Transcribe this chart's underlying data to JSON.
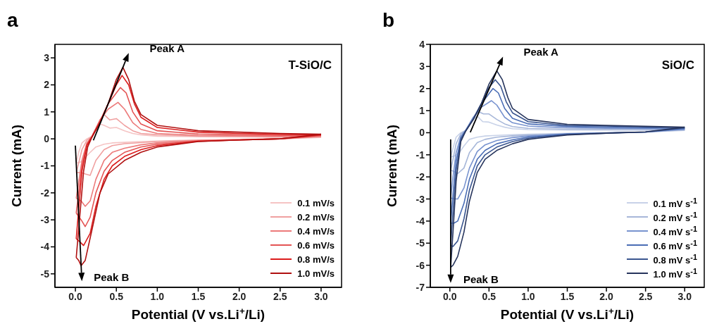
{
  "chart_data": [
    {
      "type": "line",
      "title": "T-SiO/C",
      "xlabel": "Potential (V vs.Li$^{+}$/Li)",
      "ylabel": "Current (mA)",
      "xlim": [
        -0.25,
        3.25
      ],
      "ylim": [
        -5.5,
        3.5
      ],
      "xticks": [
        {
          "value": 0,
          "label": "0.0"
        },
        0.5,
        {
          "value": 1,
          "label": "1.0"
        },
        1.5,
        {
          "value": 2,
          "label": "2.0"
        },
        2.5,
        {
          "value": 3,
          "label": "3.0"
        }
      ],
      "yticks": [
        -5,
        -4,
        -3,
        -2,
        -1,
        0,
        1,
        2,
        3
      ],
      "legend": "bottom right",
      "annotations": [
        "a",
        {
          "text": "Peak A",
          "x": 0.58,
          "y": 2.65
        },
        {
          "text": "Peak B",
          "x": 0.07,
          "y": -4.7
        }
      ],
      "series": [
        {
          "name": "0.1 mV/s",
          "color": "#f5c4c4",
          "x": [
            0.01,
            0.04,
            0.08,
            0.14,
            0.2,
            0.3,
            0.35,
            0.42,
            0.5,
            0.6,
            0.7,
            0.8,
            1.0,
            1.5,
            2.0,
            2.5,
            3.0
          ],
          "values": [
            -0.9,
            -0.5,
            -0.15,
            0.0,
            0.1,
            0.55,
            0.5,
            0.4,
            0.42,
            0.3,
            0.2,
            0.15,
            0.1,
            0.08,
            0.07,
            0.06,
            0.05
          ]
        },
        {
          "color": "#f5c4c4",
          "x": [
            3.0,
            2.5,
            2.0,
            1.5,
            1.0,
            0.8,
            0.6,
            0.45,
            0.35,
            0.25,
            0.18,
            0.12,
            0.07,
            0.01
          ],
          "values": [
            0.05,
            0.0,
            -0.02,
            -0.04,
            -0.08,
            -0.1,
            -0.13,
            -0.15,
            -0.2,
            -0.3,
            -0.5,
            -0.7,
            -0.85,
            -0.9
          ]
        },
        {
          "name": "0.2 mV/s",
          "color": "#f0a0a0",
          "x": [
            0.01,
            0.04,
            0.08,
            0.14,
            0.2,
            0.3,
            0.35,
            0.42,
            0.5,
            0.6,
            0.7,
            0.8,
            1.0,
            1.5,
            2.0,
            2.5,
            3.0
          ],
          "values": [
            -1.25,
            -0.9,
            -0.4,
            -0.05,
            0.08,
            0.7,
            0.9,
            0.7,
            0.75,
            0.5,
            0.3,
            0.2,
            0.15,
            0.1,
            0.09,
            0.08,
            0.08
          ]
        },
        {
          "color": "#f0a0a0",
          "x": [
            3.0,
            2.5,
            2.0,
            1.5,
            1.0,
            0.8,
            0.6,
            0.45,
            0.35,
            0.25,
            0.18,
            0.12,
            0.07,
            0.01
          ],
          "values": [
            0.08,
            0.0,
            -0.03,
            -0.05,
            -0.1,
            -0.14,
            -0.18,
            -0.25,
            -0.4,
            -0.8,
            -1.35,
            -1.3,
            -1.25,
            -1.25
          ]
        },
        {
          "name": "0.4 mV/s",
          "color": "#ec7a7a",
          "x": [
            0.01,
            0.04,
            0.08,
            0.14,
            0.2,
            0.3,
            0.4,
            0.52,
            0.6,
            0.7,
            0.8,
            1.0,
            1.5,
            2.0,
            2.5,
            3.0
          ],
          "values": [
            -2.2,
            -1.6,
            -0.8,
            -0.15,
            0.08,
            0.7,
            1.1,
            1.35,
            1.1,
            0.6,
            0.35,
            0.2,
            0.13,
            0.11,
            0.1,
            0.1
          ]
        },
        {
          "color": "#ec7a7a",
          "x": [
            3.0,
            2.5,
            2.0,
            1.5,
            1.0,
            0.8,
            0.6,
            0.45,
            0.35,
            0.25,
            0.18,
            0.12,
            0.07,
            0.01
          ],
          "values": [
            0.1,
            0.0,
            -0.03,
            -0.06,
            -0.15,
            -0.22,
            -0.35,
            -0.5,
            -0.8,
            -1.5,
            -2.3,
            -2.5,
            -2.3,
            -2.2
          ]
        },
        {
          "name": "0.6 mV/s",
          "color": "#e45454",
          "x": [
            0.01,
            0.04,
            0.08,
            0.14,
            0.2,
            0.3,
            0.4,
            0.55,
            0.62,
            0.7,
            0.8,
            1.0,
            1.5,
            2.0,
            2.5,
            3.0
          ],
          "values": [
            -2.75,
            -2.0,
            -1.0,
            -0.2,
            0.08,
            0.65,
            1.3,
            1.9,
            1.7,
            1.0,
            0.55,
            0.3,
            0.18,
            0.15,
            0.13,
            0.13
          ]
        },
        {
          "color": "#e45454",
          "x": [
            3.0,
            2.5,
            2.0,
            1.5,
            1.0,
            0.8,
            0.6,
            0.45,
            0.35,
            0.25,
            0.18,
            0.12,
            0.07,
            0.01
          ],
          "values": [
            0.13,
            0.0,
            -0.04,
            -0.08,
            -0.2,
            -0.3,
            -0.5,
            -0.8,
            -1.2,
            -2.0,
            -2.9,
            -3.25,
            -3.0,
            -2.75
          ]
        },
        {
          "name": "0.8 mV/s",
          "color": "#dc1c1c",
          "x": [
            0.01,
            0.04,
            0.08,
            0.14,
            0.2,
            0.3,
            0.4,
            0.5,
            0.57,
            0.65,
            0.72,
            0.8,
            1.0,
            1.5,
            2.0,
            2.5,
            3.0
          ],
          "values": [
            -3.7,
            -2.6,
            -1.2,
            -0.25,
            0.06,
            0.62,
            1.3,
            2.0,
            2.35,
            2.0,
            1.3,
            0.8,
            0.42,
            0.25,
            0.2,
            0.17,
            0.15
          ]
        },
        {
          "color": "#dc1c1c",
          "x": [
            3.0,
            2.5,
            2.0,
            1.5,
            1.0,
            0.8,
            0.6,
            0.45,
            0.35,
            0.25,
            0.18,
            0.1,
            0.05,
            0.01
          ],
          "values": [
            0.15,
            0.0,
            -0.04,
            -0.09,
            -0.25,
            -0.4,
            -0.65,
            -1.0,
            -1.5,
            -2.5,
            -3.5,
            -3.95,
            -3.8,
            -3.7
          ]
        },
        {
          "name": "1.0 mV/s",
          "color": "#b01010",
          "x": [
            0.01,
            0.05,
            0.1,
            0.15,
            0.2,
            0.3,
            0.4,
            0.5,
            0.58,
            0.65,
            0.72,
            0.8,
            1.0,
            1.5,
            2.0,
            2.5,
            3.0
          ],
          "values": [
            -4.4,
            -3.0,
            -1.2,
            -0.3,
            0.05,
            0.6,
            1.3,
            2.2,
            2.65,
            2.2,
            1.4,
            0.9,
            0.5,
            0.3,
            0.25,
            0.2,
            0.17
          ]
        },
        {
          "color": "#b01010",
          "x": [
            3.0,
            2.5,
            2.0,
            1.5,
            1.0,
            0.8,
            0.6,
            0.4,
            0.3,
            0.2,
            0.12,
            0.07,
            0.04,
            0.01
          ],
          "values": [
            0.17,
            0.0,
            -0.04,
            -0.1,
            -0.3,
            -0.5,
            -0.8,
            -1.3,
            -2.0,
            -3.4,
            -4.5,
            -4.7,
            -4.5,
            -4.4
          ]
        }
      ]
    },
    {
      "type": "line",
      "title": "SiO/C",
      "xlabel": "Potential (V vs.Li$^{+}$/Li)",
      "ylabel": "Current (mA)",
      "xlim": [
        -0.25,
        3.25
      ],
      "ylim": [
        -7,
        4
      ],
      "xticks": [
        {
          "value": 0,
          "label": "0.0"
        },
        0.5,
        {
          "value": 1,
          "label": "1.0"
        },
        1.5,
        {
          "value": 2,
          "label": "2.0"
        },
        2.5,
        {
          "value": 3,
          "label": "3.0"
        }
      ],
      "yticks": [
        -7,
        -6,
        -5,
        -4,
        -3,
        -2,
        -1,
        0,
        1,
        2,
        3,
        4
      ],
      "legend": "bottom right",
      "annotations": [
        "b",
        {
          "text": "Peak A",
          "x": 0.6,
          "y": 2.8
        },
        {
          "text": "Peak B",
          "x": 0.01,
          "y": -6.1
        }
      ],
      "series": [
        {
          "name": "0.1 mV s$^{-1}$",
          "color": "#c8d2e8",
          "x": [
            0.01,
            0.04,
            0.08,
            0.14,
            0.2,
            0.3,
            0.35,
            0.42,
            0.5,
            0.6,
            0.7,
            0.8,
            1.0,
            1.5,
            2.0,
            2.5,
            3.0
          ],
          "values": [
            -1.1,
            -0.7,
            -0.2,
            0.0,
            0.1,
            0.6,
            0.75,
            0.5,
            0.48,
            0.35,
            0.25,
            0.18,
            0.14,
            0.12,
            0.12,
            0.11,
            0.1
          ]
        },
        {
          "color": "#c8d2e8",
          "x": [
            3.0,
            2.5,
            2.0,
            1.5,
            1.0,
            0.8,
            0.6,
            0.45,
            0.35,
            0.25,
            0.18,
            0.12,
            0.06,
            0.01
          ],
          "values": [
            0.1,
            0.03,
            0.0,
            -0.03,
            -0.07,
            -0.09,
            -0.12,
            -0.15,
            -0.2,
            -0.3,
            -0.6,
            -0.9,
            -1.05,
            -1.1
          ]
        },
        {
          "name": "0.2 mV s$^{-1}$",
          "color": "#a7b7d9",
          "x": [
            0.01,
            0.04,
            0.08,
            0.14,
            0.2,
            0.3,
            0.37,
            0.43,
            0.5,
            0.6,
            0.7,
            0.8,
            1.0,
            1.5,
            2.0,
            2.5,
            3.0
          ],
          "values": [
            -1.7,
            -1.2,
            -0.5,
            -0.05,
            0.1,
            0.7,
            0.95,
            0.85,
            0.85,
            0.6,
            0.4,
            0.28,
            0.2,
            0.16,
            0.15,
            0.14,
            0.13
          ]
        },
        {
          "color": "#a7b7d9",
          "x": [
            3.0,
            2.5,
            2.0,
            1.5,
            1.0,
            0.8,
            0.6,
            0.45,
            0.35,
            0.25,
            0.18,
            0.1,
            0.05,
            0.01
          ],
          "values": [
            0.13,
            0.03,
            0.0,
            -0.04,
            -0.1,
            -0.14,
            -0.2,
            -0.3,
            -0.45,
            -0.9,
            -1.6,
            -1.85,
            -1.75,
            -1.7
          ]
        },
        {
          "name": "0.4 mV s$^{-1}$",
          "color": "#7893cf",
          "x": [
            0.01,
            0.04,
            0.08,
            0.14,
            0.2,
            0.3,
            0.4,
            0.53,
            0.6,
            0.7,
            0.8,
            1.0,
            1.5,
            2.0,
            2.5,
            3.0
          ],
          "values": [
            -2.95,
            -2.0,
            -0.9,
            -0.15,
            0.1,
            0.7,
            1.15,
            1.45,
            1.25,
            0.7,
            0.45,
            0.3,
            0.22,
            0.2,
            0.18,
            0.16
          ]
        },
        {
          "color": "#7893cf",
          "x": [
            3.0,
            2.5,
            2.0,
            1.5,
            1.0,
            0.8,
            0.6,
            0.45,
            0.35,
            0.25,
            0.18,
            0.1,
            0.05,
            0.01
          ],
          "values": [
            0.16,
            0.03,
            -0.01,
            -0.05,
            -0.15,
            -0.22,
            -0.35,
            -0.55,
            -0.85,
            -1.6,
            -2.5,
            -3.0,
            -3.0,
            -2.95
          ]
        },
        {
          "name": "0.6 mV s$^{-1}$",
          "color": "#4a6db5",
          "x": [
            0.01,
            0.04,
            0.08,
            0.14,
            0.2,
            0.3,
            0.4,
            0.55,
            0.62,
            0.7,
            0.8,
            1.0,
            1.5,
            2.0,
            2.5,
            3.0
          ],
          "values": [
            -4.1,
            -2.8,
            -1.3,
            -0.25,
            0.08,
            0.65,
            1.3,
            2.0,
            1.8,
            1.1,
            0.65,
            0.4,
            0.28,
            0.25,
            0.22,
            0.19
          ]
        },
        {
          "color": "#4a6db5",
          "x": [
            3.0,
            2.5,
            2.0,
            1.5,
            1.0,
            0.8,
            0.6,
            0.45,
            0.35,
            0.25,
            0.18,
            0.1,
            0.05,
            0.01
          ],
          "values": [
            0.19,
            0.03,
            -0.01,
            -0.06,
            -0.2,
            -0.32,
            -0.5,
            -0.8,
            -1.2,
            -2.1,
            -3.2,
            -4.0,
            -4.1,
            -4.1
          ]
        },
        {
          "name": "0.8 mV s$^{-1}$",
          "color": "#3b5690",
          "x": [
            0.01,
            0.04,
            0.08,
            0.14,
            0.2,
            0.3,
            0.4,
            0.5,
            0.58,
            0.65,
            0.72,
            0.8,
            1.0,
            1.5,
            2.0,
            2.5,
            3.0
          ],
          "values": [
            -5.1,
            -3.6,
            -1.7,
            -0.3,
            0.07,
            0.62,
            1.3,
            2.05,
            2.4,
            2.1,
            1.4,
            0.9,
            0.5,
            0.33,
            0.3,
            0.26,
            0.22
          ]
        },
        {
          "color": "#3b5690",
          "x": [
            3.0,
            2.5,
            2.0,
            1.5,
            1.0,
            0.8,
            0.6,
            0.45,
            0.35,
            0.25,
            0.18,
            0.1,
            0.04,
            0.01
          ],
          "values": [
            0.22,
            0.03,
            -0.02,
            -0.08,
            -0.25,
            -0.4,
            -0.65,
            -1.0,
            -1.5,
            -2.6,
            -3.9,
            -4.9,
            -5.15,
            -5.1
          ]
        },
        {
          "name": "1.0 mV s$^{-1}$",
          "color": "#26345c",
          "x": [
            0.01,
            0.04,
            0.08,
            0.14,
            0.2,
            0.3,
            0.4,
            0.5,
            0.6,
            0.67,
            0.74,
            0.8,
            1.0,
            1.5,
            2.0,
            2.5,
            3.0
          ],
          "values": [
            -6.1,
            -4.5,
            -2.2,
            -0.4,
            0.06,
            0.6,
            1.3,
            2.2,
            2.8,
            2.4,
            1.6,
            1.1,
            0.6,
            0.38,
            0.33,
            0.29,
            0.25
          ]
        },
        {
          "color": "#26345c",
          "x": [
            3.0,
            2.5,
            2.0,
            1.5,
            1.0,
            0.8,
            0.6,
            0.45,
            0.35,
            0.25,
            0.18,
            0.1,
            0.04,
            0.01
          ],
          "values": [
            0.25,
            0.04,
            -0.02,
            -0.1,
            -0.3,
            -0.5,
            -0.8,
            -1.2,
            -1.8,
            -3.1,
            -4.5,
            -5.6,
            -6.0,
            -6.1
          ]
        }
      ]
    }
  ]
}
